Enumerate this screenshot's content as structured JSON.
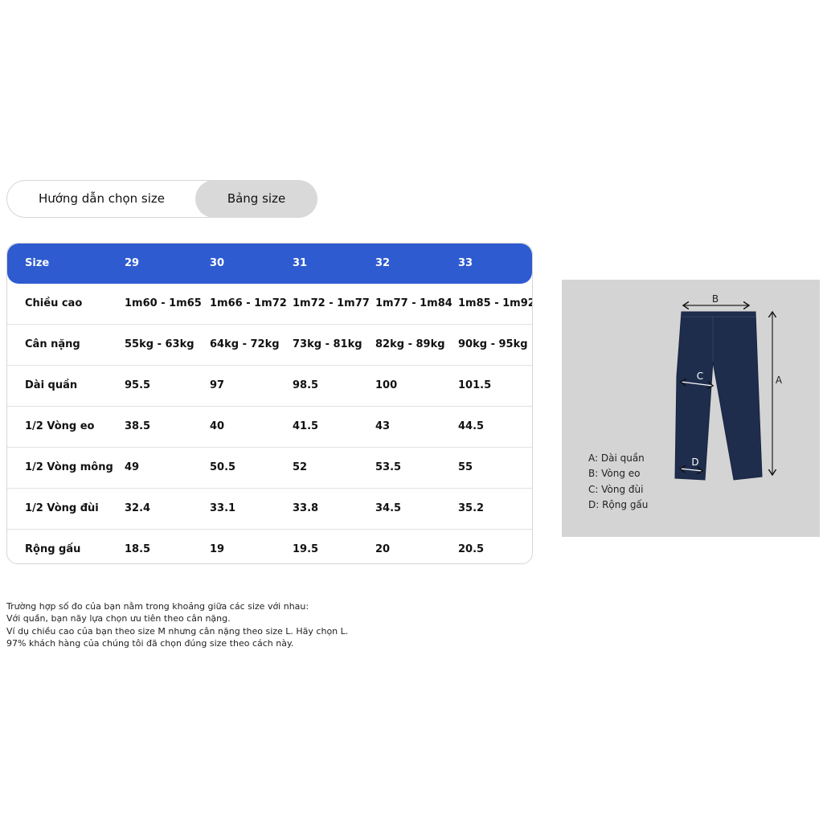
{
  "tabs": [
    {
      "label": "Hướng dẫn chọn size",
      "active": false
    },
    {
      "label": "Bảng size",
      "active": true
    }
  ],
  "table": {
    "header": [
      "Size",
      "29",
      "30",
      "31",
      "32",
      "33"
    ],
    "rows": [
      [
        "Chiều cao",
        "1m60 - 1m65",
        "1m66 - 1m72",
        "1m72 - 1m77",
        "1m77 - 1m84",
        "1m85 - 1m92"
      ],
      [
        "Cân nặng",
        "55kg - 63kg",
        "64kg - 72kg",
        "73kg - 81kg",
        "82kg - 89kg",
        "90kg - 95kg"
      ],
      [
        "Dài quần",
        "95.5",
        "97",
        "98.5",
        "100",
        "101.5"
      ],
      [
        "1/2 Vòng eo",
        "38.5",
        "40",
        "41.5",
        "43",
        "44.5"
      ],
      [
        "1/2 Vòng mông",
        "49",
        "50.5",
        "52",
        "53.5",
        "55"
      ],
      [
        "1/2 Vòng đùi",
        "32.4",
        "33.1",
        "33.8",
        "34.5",
        "35.2"
      ],
      [
        "Rộng gấu",
        "18.5",
        "19",
        "19.5",
        "20",
        "20.5"
      ]
    ],
    "header_color": "#2f5bd1"
  },
  "notes": [
    "Trường hợp số đo của bạn nằm trong khoảng giữa các size với nhau:",
    "Với quần, bạn nãy lựa chọn ưu tiên theo cân nặng.",
    "Ví dụ chiều cao của bạn theo size M nhưng cân nặng theo size L. Hãy chọn L.",
    "97% khách hàng của chúng tôi đã chọn đúng size theo cách này."
  ],
  "diagram": {
    "labels": {
      "a": "A",
      "b": "B",
      "c": "C",
      "d": "D"
    },
    "legend": [
      "A: Dài quần",
      "B: Vòng eo",
      "C: Vòng đùi",
      "D: Rộng gấu"
    ]
  }
}
